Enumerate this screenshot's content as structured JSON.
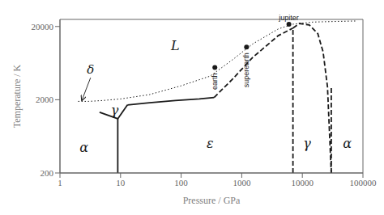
{
  "chart_data": {
    "type": "line",
    "xlabel": "Pressure / GPa",
    "ylabel": "Temperature / K",
    "log": true,
    "grid": false,
    "color": "#1a1a1a",
    "xlim": [
      1,
      100000
    ],
    "ylim": [
      200,
      25000
    ],
    "xticks": [
      1,
      10,
      100,
      1000,
      10000,
      100000
    ],
    "yticks": [
      200,
      2000,
      20000
    ],
    "series": [
      {
        "type": "line",
        "line_style": "solid",
        "color": "#1a1a1a",
        "x": [
          9,
          9
        ],
        "values": [
          200,
          1100
        ]
      },
      {
        "type": "line",
        "line_style": "solid",
        "color": "#1a1a1a",
        "x": [
          4.5,
          9
        ],
        "values": [
          1350,
          1100
        ]
      },
      {
        "type": "line",
        "line_style": "solid",
        "color": "#1a1a1a",
        "x": [
          9,
          13
        ],
        "values": [
          1100,
          1700
        ]
      },
      {
        "type": "line",
        "line_style": "solid",
        "color": "#1a1a1a",
        "x": [
          13,
          30,
          80,
          200,
          350
        ],
        "values": [
          1700,
          1820,
          1950,
          2050,
          2150
        ]
      },
      {
        "type": "line",
        "line_style": "dashed",
        "color": "#1a1a1a",
        "x": [
          350,
          700,
          1500,
          4000,
          7000
        ],
        "values": [
          2150,
          3800,
          7500,
          15000,
          19000
        ]
      },
      {
        "type": "line",
        "line_style": "dotted",
        "color": "#1a1a1a",
        "x": [
          2.0,
          3,
          5,
          10,
          30,
          100,
          300,
          700,
          1500,
          4000,
          7000,
          15000,
          40000,
          80000
        ],
        "values": [
          1900,
          1900,
          1950,
          2050,
          2350,
          3100,
          4200,
          7000,
          11500,
          18500,
          21500,
          23000,
          23500,
          23800
        ]
      },
      {
        "type": "line",
        "line_style": "dashed",
        "color": "#1a1a1a",
        "x": [
          7000,
          7000
        ],
        "values": [
          200,
          19000
        ]
      },
      {
        "type": "line",
        "line_style": "dashed",
        "color": "#1a1a1a",
        "x": [
          7000,
          9000,
          13000,
          18000,
          22000,
          26000,
          30000
        ],
        "values": [
          19000,
          22000,
          21000,
          16000,
          9000,
          3000,
          200
        ]
      },
      {
        "type": "line",
        "line_style": "dashed",
        "color": "#1a1a1a",
        "x": [
          30000,
          30000
        ],
        "values": [
          200,
          3000
        ]
      },
      {
        "type": "scatter",
        "marker": "circle",
        "color": "#1a1a1a",
        "x": [
          360,
          1200,
          6000
        ],
        "values": [
          5500,
          10500,
          21500
        ]
      }
    ],
    "annotations": [
      {
        "text": "earth",
        "x": 360,
        "y": 5500,
        "position": "below"
      },
      {
        "text": "superearth",
        "x": 1200,
        "y": 10500,
        "position": "below"
      },
      {
        "text": "jupiter",
        "x": 6000,
        "y": 21500,
        "position": "above"
      },
      {
        "text": "α",
        "x": 2.5,
        "y": 450,
        "position": "center"
      },
      {
        "text": "γ",
        "x": 8.0,
        "y": 1430,
        "position": "center"
      },
      {
        "text": "δ",
        "x": 3.2,
        "y": 4000,
        "position": "above",
        "arrow_to": [
          2.3,
          1960
        ]
      },
      {
        "text": "L",
        "x": 80,
        "y": 11000,
        "position": "center"
      },
      {
        "text": "ε",
        "x": 300,
        "y": 500,
        "position": "center"
      },
      {
        "text": "γ",
        "x": 12000,
        "y": 500,
        "position": "center"
      },
      {
        "text": "α",
        "x": 55000,
        "y": 500,
        "position": "center"
      }
    ]
  }
}
